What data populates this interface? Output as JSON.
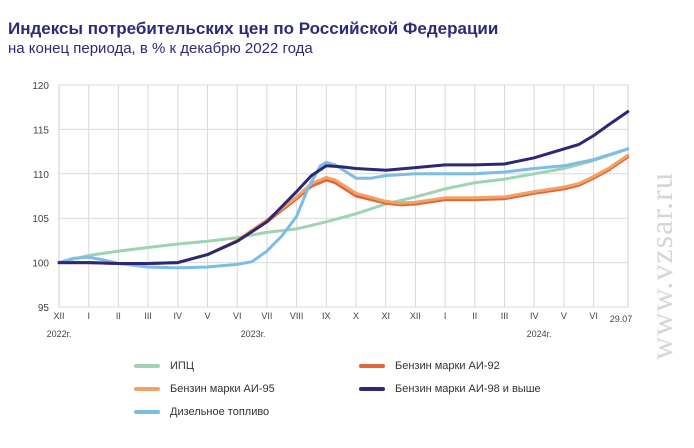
{
  "title": "Индексы потребительских цен по Российской Федерации",
  "subtitle": "на конец периода, в % к декабрю 2022 года",
  "watermark": "www.vzsar.ru",
  "chart_data": {
    "type": "line",
    "y_ticks": [
      95,
      100,
      105,
      110,
      115,
      120
    ],
    "ylim": [
      95,
      120
    ],
    "x_ticks": [
      "XII",
      "I",
      "II",
      "III",
      "IV",
      "V",
      "VI",
      "VII",
      "VIII",
      "IX",
      "X",
      "XI",
      "XII",
      "I",
      "II",
      "III",
      "IV",
      "V",
      "VI"
    ],
    "x_end_label": "29.07",
    "year_labels": [
      "2022г.",
      "2023г.",
      "2024г."
    ],
    "xlim": [
      0,
      19.15
    ],
    "grid": true,
    "legend_position": "bottom",
    "series": [
      {
        "name": "ИПЦ",
        "color": "#9ed4b4",
        "points": [
          [
            0,
            100
          ],
          [
            1,
            100.8
          ],
          [
            2,
            101.3
          ],
          [
            3,
            101.7
          ],
          [
            4,
            102.1
          ],
          [
            5,
            102.4
          ],
          [
            6,
            102.8
          ],
          [
            7,
            103.4
          ],
          [
            8,
            103.8
          ],
          [
            9,
            104.6
          ],
          [
            10,
            105.5
          ],
          [
            11,
            106.6
          ],
          [
            12,
            107.4
          ],
          [
            13,
            108.3
          ],
          [
            14,
            109
          ],
          [
            15,
            109.4
          ],
          [
            16,
            110
          ],
          [
            17,
            110.6
          ],
          [
            18,
            111.5
          ],
          [
            19.15,
            112.8
          ]
        ]
      },
      {
        "name": "Бензин марки АИ-92",
        "color": "#e0663a",
        "points": [
          [
            0,
            100
          ],
          [
            1,
            100
          ],
          [
            2,
            99.9
          ],
          [
            3,
            99.9
          ],
          [
            4,
            100
          ],
          [
            5,
            100.9
          ],
          [
            6,
            102.4
          ],
          [
            7,
            104.6
          ],
          [
            8,
            107.2
          ],
          [
            8.5,
            108.6
          ],
          [
            9,
            109.3
          ],
          [
            9.3,
            109
          ],
          [
            10,
            107.5
          ],
          [
            11,
            106.7
          ],
          [
            11.5,
            106.5
          ],
          [
            12,
            106.6
          ],
          [
            13,
            107.1
          ],
          [
            14,
            107.1
          ],
          [
            15,
            107.2
          ],
          [
            16,
            107.8
          ],
          [
            17,
            108.3
          ],
          [
            17.5,
            108.7
          ],
          [
            18,
            109.5
          ],
          [
            18.5,
            110.4
          ],
          [
            19.15,
            111.9
          ]
        ]
      },
      {
        "name": "Бензин марки АИ-95",
        "color": "#f2a266",
        "points": [
          [
            0,
            100
          ],
          [
            1,
            100
          ],
          [
            2,
            99.9
          ],
          [
            3,
            99.9
          ],
          [
            4,
            100
          ],
          [
            5,
            100.9
          ],
          [
            6,
            102.5
          ],
          [
            7,
            104.8
          ],
          [
            8,
            107.4
          ],
          [
            8.5,
            108.9
          ],
          [
            9,
            109.6
          ],
          [
            9.3,
            109.3
          ],
          [
            10,
            107.8
          ],
          [
            11,
            106.9
          ],
          [
            11.5,
            106.7
          ],
          [
            12,
            106.8
          ],
          [
            13,
            107.3
          ],
          [
            14,
            107.3
          ],
          [
            15,
            107.4
          ],
          [
            16,
            108
          ],
          [
            17,
            108.5
          ],
          [
            17.5,
            108.9
          ],
          [
            18,
            109.7
          ],
          [
            18.5,
            110.6
          ],
          [
            19.15,
            112.1
          ]
        ]
      },
      {
        "name": "Бензин марки АИ-98 и выше",
        "color": "#2c2777",
        "points": [
          [
            0,
            100
          ],
          [
            1,
            100
          ],
          [
            2,
            99.9
          ],
          [
            3,
            99.9
          ],
          [
            4,
            100
          ],
          [
            5,
            100.9
          ],
          [
            6,
            102.4
          ],
          [
            7,
            104.6
          ],
          [
            8,
            108
          ],
          [
            8.5,
            109.8
          ],
          [
            9,
            110.9
          ],
          [
            9.5,
            110.8
          ],
          [
            10,
            110.6
          ],
          [
            11,
            110.4
          ],
          [
            12,
            110.7
          ],
          [
            13,
            111
          ],
          [
            14,
            111
          ],
          [
            15,
            111.1
          ],
          [
            16,
            111.8
          ],
          [
            17,
            112.8
          ],
          [
            17.5,
            113.3
          ],
          [
            18,
            114.3
          ],
          [
            18.5,
            115.5
          ],
          [
            19.15,
            117
          ]
        ]
      },
      {
        "name": "Дизельное топливо",
        "color": "#7cbde6",
        "points": [
          [
            0,
            100
          ],
          [
            0.5,
            100.5
          ],
          [
            1,
            100.6
          ],
          [
            1.5,
            100.3
          ],
          [
            2,
            99.9
          ],
          [
            3,
            99.5
          ],
          [
            4,
            99.4
          ],
          [
            5,
            99.5
          ],
          [
            6,
            99.8
          ],
          [
            6.5,
            100.1
          ],
          [
            7,
            101.3
          ],
          [
            7.5,
            103
          ],
          [
            8,
            105.2
          ],
          [
            8.4,
            108.5
          ],
          [
            8.8,
            110.9
          ],
          [
            9,
            111.3
          ],
          [
            9.3,
            111
          ],
          [
            10,
            109.5
          ],
          [
            10.5,
            109.5
          ],
          [
            11,
            109.8
          ],
          [
            12,
            110
          ],
          [
            13,
            110
          ],
          [
            14,
            110
          ],
          [
            15,
            110.2
          ],
          [
            16,
            110.6
          ],
          [
            17,
            110.9
          ],
          [
            18,
            111.6
          ],
          [
            19.15,
            112.8
          ]
        ]
      }
    ]
  }
}
